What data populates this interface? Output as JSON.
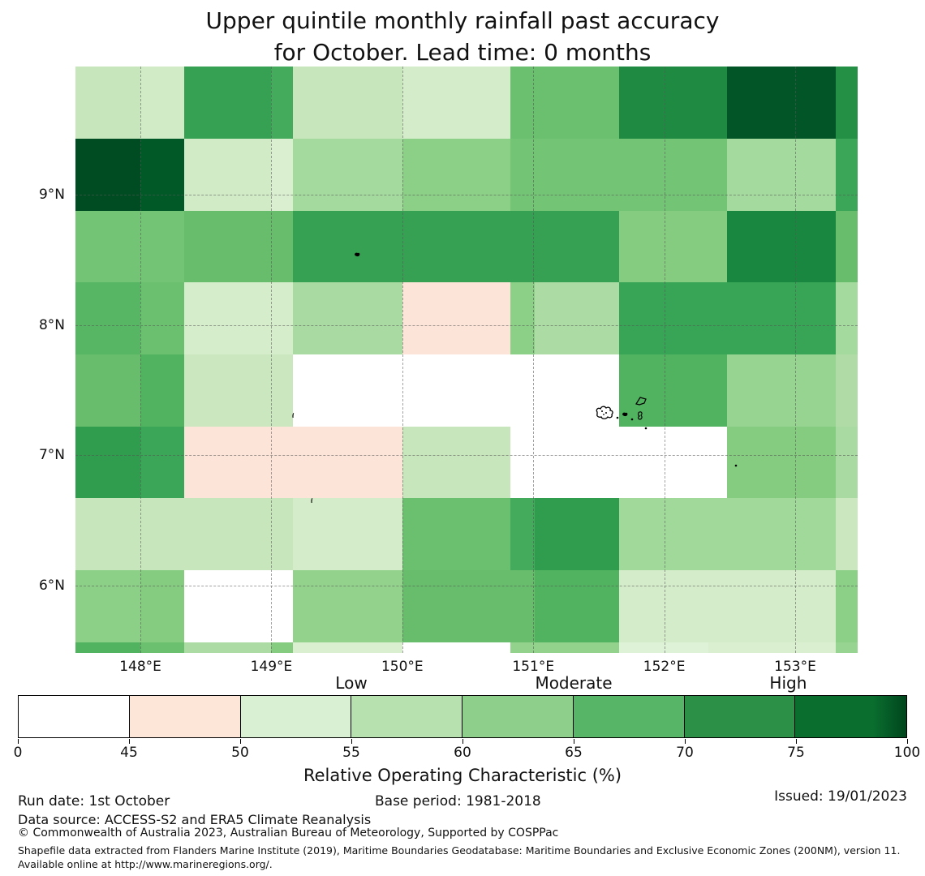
{
  "title": {
    "line1": "Upper quintile monthly rainfall past accuracy",
    "line2": "for October. Lead time: 0 months"
  },
  "chart_data": {
    "type": "heatmap",
    "title": "Upper quintile monthly rainfall past accuracy for October. Lead time: 0 months",
    "value_name": "Relative Operating Characteristic (%)",
    "lon_range": [
      147.504,
      153.477
    ],
    "lat_range": [
      5.485,
      9.983
    ],
    "x_ticks": [
      {
        "lon": 148,
        "label": "148°E"
      },
      {
        "lon": 149,
        "label": "149°E"
      },
      {
        "lon": 150,
        "label": "150°E"
      },
      {
        "lon": 151,
        "label": "151°E"
      },
      {
        "lon": 152,
        "label": "152°E"
      },
      {
        "lon": 153,
        "label": "153°E"
      }
    ],
    "y_ticks": [
      {
        "lat": 9,
        "label": "9°N"
      },
      {
        "lat": 8,
        "label": "8°N"
      },
      {
        "lat": 7,
        "label": "7°N"
      },
      {
        "lat": 6,
        "label": "6°N"
      }
    ],
    "rows": [
      {
        "lat_from": 9.983,
        "lat_to": 9.429,
        "segments": [
          [
            147.504,
            148.0,
            55
          ],
          [
            148.0,
            148.335,
            53
          ],
          [
            148.335,
            149.0,
            73
          ],
          [
            149.0,
            149.165,
            71
          ],
          [
            149.165,
            150.004,
            55
          ],
          [
            150.004,
            150.828,
            52.5
          ],
          [
            150.828,
            151.658,
            67
          ],
          [
            151.658,
            152.482,
            77
          ],
          [
            152.482,
            153.312,
            89
          ],
          [
            153.312,
            153.477,
            76
          ]
        ]
      },
      {
        "lat_from": 9.429,
        "lat_to": 8.876,
        "segments": [
          [
            147.504,
            148.0,
            92
          ],
          [
            148.0,
            148.335,
            88
          ],
          [
            148.335,
            149.0,
            53
          ],
          [
            149.0,
            149.165,
            51.5
          ],
          [
            149.165,
            150.004,
            59.5
          ],
          [
            150.004,
            150.828,
            63
          ],
          [
            150.828,
            152.482,
            66
          ],
          [
            152.482,
            153.312,
            59.5
          ],
          [
            153.312,
            153.477,
            72
          ]
        ]
      },
      {
        "lat_from": 8.876,
        "lat_to": 8.328,
        "segments": [
          [
            147.504,
            148.335,
            66
          ],
          [
            148.335,
            149.165,
            67.5
          ],
          [
            149.165,
            151.658,
            73
          ],
          [
            151.658,
            152.482,
            64
          ],
          [
            152.482,
            153.312,
            77.5
          ],
          [
            153.312,
            153.477,
            67.5
          ]
        ]
      },
      {
        "lat_from": 8.328,
        "lat_to": 7.774,
        "segments": [
          [
            147.504,
            148.0,
            69
          ],
          [
            148.0,
            148.335,
            67
          ],
          [
            148.335,
            149.165,
            52
          ],
          [
            149.165,
            150.004,
            59
          ],
          [
            150.004,
            150.828,
            47
          ],
          [
            150.828,
            151.014,
            63
          ],
          [
            151.014,
            151.658,
            58.5
          ],
          [
            151.658,
            153.312,
            72.5
          ],
          [
            153.312,
            153.477,
            59.5
          ]
        ]
      },
      {
        "lat_from": 7.774,
        "lat_to": 7.221,
        "segments": [
          [
            147.504,
            148.0,
            67.5
          ],
          [
            148.0,
            148.335,
            69.5
          ],
          [
            148.335,
            149.165,
            54.5
          ],
          [
            149.165,
            151.658,
            40
          ],
          [
            151.658,
            152.482,
            69.5
          ],
          [
            152.482,
            153.312,
            61.5
          ],
          [
            153.312,
            153.477,
            58
          ]
        ]
      },
      {
        "lat_from": 7.221,
        "lat_to": 6.673,
        "segments": [
          [
            147.504,
            148.0,
            74
          ],
          [
            148.0,
            148.335,
            72
          ],
          [
            148.335,
            150.004,
            47
          ],
          [
            150.004,
            150.828,
            55
          ],
          [
            150.828,
            152.482,
            40
          ],
          [
            152.482,
            153.312,
            64
          ],
          [
            153.312,
            153.477,
            59
          ]
        ]
      },
      {
        "lat_from": 6.673,
        "lat_to": 6.119,
        "segments": [
          [
            147.504,
            149.165,
            55
          ],
          [
            149.165,
            150.004,
            52.5
          ],
          [
            150.004,
            150.828,
            67
          ],
          [
            150.828,
            151.014,
            71
          ],
          [
            151.014,
            151.658,
            74
          ],
          [
            151.658,
            153.312,
            60
          ],
          [
            153.312,
            153.477,
            54.5
          ]
        ]
      },
      {
        "lat_from": 6.119,
        "lat_to": 5.566,
        "segments": [
          [
            147.504,
            148.0,
            63
          ],
          [
            148.0,
            148.335,
            64
          ],
          [
            148.335,
            149.165,
            40
          ],
          [
            149.165,
            150.004,
            62
          ],
          [
            150.004,
            151.014,
            67.5
          ],
          [
            151.014,
            151.658,
            69.5
          ],
          [
            151.658,
            153.312,
            52.5
          ],
          [
            153.312,
            153.477,
            63
          ]
        ]
      },
      {
        "lat_from": 5.566,
        "lat_to": 5.485,
        "segments": [
          [
            147.504,
            148.0,
            69.5
          ],
          [
            148.0,
            148.335,
            67
          ],
          [
            148.335,
            149.0,
            58.5
          ],
          [
            149.0,
            149.165,
            64
          ],
          [
            149.165,
            150.004,
            51.5
          ],
          [
            150.004,
            150.828,
            40
          ],
          [
            150.828,
            151.658,
            62
          ],
          [
            151.658,
            152.335,
            50.5
          ],
          [
            152.335,
            153.312,
            51.5
          ],
          [
            153.312,
            153.477,
            61.5
          ]
        ]
      }
    ],
    "islands": [
      {
        "lon": 149.655,
        "lat": 8.585,
        "kind": "islet-small"
      },
      {
        "lon": 149.165,
        "lat": 7.352,
        "kind": "islet-tiny"
      },
      {
        "lon": 149.31,
        "lat": 6.698,
        "kind": "islet-tiny"
      },
      {
        "lon": 152.55,
        "lat": 6.99,
        "kind": "islet-dot"
      },
      {
        "lon": 151.555,
        "lat": 7.335,
        "kind": "reef-cluster"
      },
      {
        "lon": 151.645,
        "lat": 7.36,
        "kind": "islet-dot"
      },
      {
        "lon": 151.7,
        "lat": 7.36,
        "kind": "islet-small"
      },
      {
        "lon": 151.755,
        "lat": 7.345,
        "kind": "islet-dot"
      },
      {
        "lon": 151.825,
        "lat": 7.432,
        "kind": "atoll-ring"
      },
      {
        "lon": 151.815,
        "lat": 7.318,
        "kind": "atoll-small"
      },
      {
        "lon": 151.862,
        "lat": 7.275,
        "kind": "islet-dot"
      }
    ],
    "palette_anchors": [
      [
        50,
        "#e0f3da"
      ],
      [
        52,
        "#d6edcc"
      ],
      [
        55,
        "#c7e6bc"
      ],
      [
        58,
        "#b0dba6"
      ],
      [
        60,
        "#a1d99b"
      ],
      [
        62,
        "#93d28d"
      ],
      [
        64,
        "#85cc81"
      ],
      [
        66,
        "#74c476"
      ],
      [
        68,
        "#62bb67"
      ],
      [
        70,
        "#4bb05e"
      ],
      [
        72,
        "#3ba657"
      ],
      [
        74,
        "#309c4d"
      ],
      [
        76,
        "#249045"
      ],
      [
        78,
        "#17843f"
      ],
      [
        80,
        "#0e7532"
      ],
      [
        85,
        "#04632a"
      ],
      [
        90,
        "#005226"
      ],
      [
        95,
        "#00441b"
      ],
      [
        100,
        "#00381a"
      ]
    ],
    "special_colors": {
      "below_45": "#ffffff",
      "pink_45_50": "#fce5d8"
    }
  },
  "colorbar": {
    "bounds": [
      0,
      45,
      50,
      55,
      60,
      65,
      70,
      75,
      100
    ],
    "tick_labels": [
      "0",
      "45",
      "50",
      "55",
      "60",
      "65",
      "70",
      "75",
      "100"
    ],
    "colors": [
      "#ffffff",
      "#fde5d8",
      "#d9f0d3",
      "#b7e2af",
      "#8ed08b",
      "#56b567",
      "#2c9147",
      "#0a6e2f"
    ],
    "last_color_end": "#00461c",
    "zone_labels": [
      {
        "label": "Low",
        "seg_pos": 3.0
      },
      {
        "label": "Moderate",
        "seg_pos": 5.0
      },
      {
        "label": "High",
        "seg_pos": 6.93
      }
    ],
    "label": "Relative Operating Characteristic (%)"
  },
  "footer": {
    "run_date": "Run date: 1st October",
    "base_period": "Base period: 1981-2018",
    "issued": "Issued: 19/01/2023",
    "data_source": "Data source: ACCESS-S2 and ERA5 Climate Reanalysis",
    "copyright": "© Commonwealth of Australia 2023, Australian Bureau of Meteorology, Supported by COSPPac",
    "shapefile_note": "Shapefile data extracted from Flanders Marine Institute (2019), Maritime Boundaries Geodatabase: Maritime Boundaries and Exclusive Economic Zones (200NM), version 11. Available online at http://www.marineregions.org/."
  }
}
